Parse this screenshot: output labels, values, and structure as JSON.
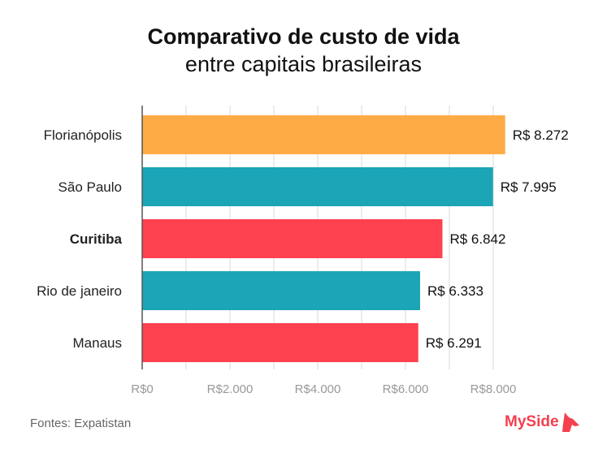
{
  "chart_data": {
    "type": "bar",
    "orientation": "horizontal",
    "title": "Comparativo de custo de vida",
    "subtitle": "entre capitais brasileiras",
    "categories": [
      "Florianópolis",
      "São Paulo",
      "Curitiba",
      "Rio de janeiro",
      "Manaus"
    ],
    "values": [
      8272,
      7995,
      6842,
      6333,
      6291
    ],
    "data_labels": [
      "R$ 8.272",
      "R$ 7.995",
      "R$ 6.842",
      "R$ 6.333",
      "R$ 6.291"
    ],
    "bar_colors": [
      "#fdab45",
      "#1ba5b6",
      "#fe414f",
      "#1ba5b6",
      "#fe414f"
    ],
    "bold_category": "Curitiba",
    "xlim": [
      0,
      8000
    ],
    "xticks": [
      0,
      2000,
      4000,
      6000,
      8000
    ],
    "xtick_labels": [
      "R$0",
      "R$2.000",
      "R$4.000",
      "R$6.000",
      "R$8.000"
    ],
    "grid_step": 1000,
    "grid": true
  },
  "footer": {
    "source": "Fontes: Expatistan",
    "logo": "MySide",
    "logo_color": "#f4404f"
  }
}
